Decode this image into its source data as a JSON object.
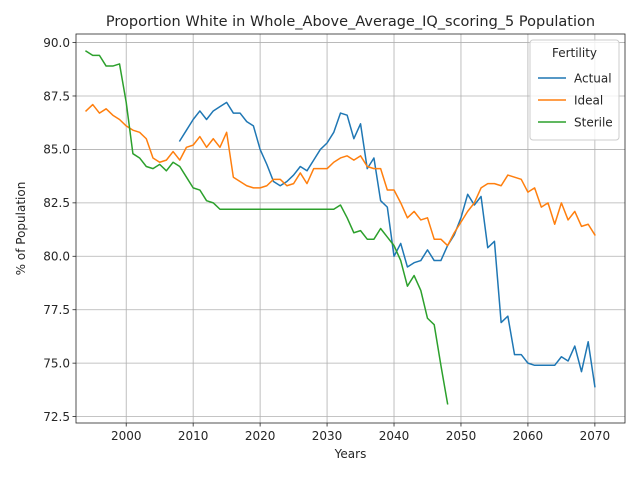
{
  "chart_data": {
    "type": "line",
    "title": "Proportion White in Whole_Above_Average_IQ_scoring_5 Population",
    "xlabel": "Years",
    "ylabel": "% of Population",
    "xlim": [
      1992.5,
      2074.5
    ],
    "ylim": [
      72.2,
      90.4
    ],
    "xticks": [
      2000,
      2010,
      2020,
      2030,
      2040,
      2050,
      2060,
      2070
    ],
    "yticks": [
      72.5,
      75.0,
      77.5,
      80.0,
      82.5,
      85.0,
      87.5,
      90.0
    ],
    "grid": true,
    "legend": {
      "title": "Fertility",
      "placement": "top-right"
    },
    "series": [
      {
        "name": "Actual",
        "color": "#1f77b4",
        "x": [
          2008,
          2009,
          2010,
          2011,
          2012,
          2013,
          2014,
          2015,
          2016,
          2017,
          2018,
          2019,
          2020,
          2021,
          2022,
          2023,
          2024,
          2025,
          2026,
          2027,
          2028,
          2029,
          2030,
          2031,
          2032,
          2033,
          2034,
          2035,
          2036,
          2037,
          2038,
          2039,
          2040,
          2041,
          2042,
          2043,
          2044,
          2045,
          2046,
          2047,
          2048,
          2049,
          2050,
          2051,
          2052,
          2053,
          2054,
          2055,
          2056,
          2057,
          2058,
          2059,
          2060,
          2061,
          2062,
          2063,
          2064,
          2065,
          2066,
          2067,
          2068,
          2069,
          2070
        ],
        "y": [
          85.4,
          85.9,
          86.4,
          86.8,
          86.4,
          86.8,
          87.0,
          87.2,
          86.7,
          86.7,
          86.3,
          86.1,
          85.0,
          84.3,
          83.5,
          83.3,
          83.5,
          83.8,
          84.2,
          84.0,
          84.5,
          85.0,
          85.3,
          85.8,
          86.7,
          86.6,
          85.5,
          86.2,
          84.1,
          84.6,
          82.6,
          82.3,
          80.0,
          80.6,
          79.5,
          79.7,
          79.8,
          80.3,
          79.8,
          79.8,
          80.5,
          81.0,
          81.8,
          82.9,
          82.4,
          82.8,
          80.4,
          80.7,
          76.9,
          77.2,
          75.4,
          75.4,
          75.0,
          74.9,
          74.9,
          74.9,
          74.9,
          75.3,
          75.1,
          75.8,
          74.6,
          76.0,
          73.9
        ]
      },
      {
        "name": "Ideal",
        "color": "#ff7f0e",
        "x": [
          1994,
          1995,
          1996,
          1997,
          1998,
          1999,
          2000,
          2001,
          2002,
          2003,
          2004,
          2005,
          2006,
          2007,
          2008,
          2009,
          2010,
          2011,
          2012,
          2013,
          2014,
          2015,
          2016,
          2017,
          2018,
          2019,
          2020,
          2021,
          2022,
          2023,
          2024,
          2025,
          2026,
          2027,
          2028,
          2029,
          2030,
          2031,
          2032,
          2033,
          2034,
          2035,
          2036,
          2037,
          2038,
          2039,
          2040,
          2041,
          2042,
          2043,
          2044,
          2045,
          2046,
          2047,
          2048,
          2049,
          2050,
          2051,
          2052,
          2053,
          2054,
          2055,
          2056,
          2057,
          2058,
          2059,
          2060,
          2061,
          2062,
          2063,
          2064,
          2065,
          2066,
          2067,
          2068,
          2069,
          2070
        ],
        "y": [
          86.8,
          87.1,
          86.7,
          86.9,
          86.6,
          86.4,
          86.1,
          85.9,
          85.8,
          85.5,
          84.6,
          84.4,
          84.5,
          84.9,
          84.5,
          85.1,
          85.2,
          85.6,
          85.1,
          85.5,
          85.1,
          85.8,
          83.7,
          83.5,
          83.3,
          83.2,
          83.2,
          83.3,
          83.6,
          83.6,
          83.3,
          83.4,
          83.9,
          83.4,
          84.1,
          84.1,
          84.1,
          84.4,
          84.6,
          84.7,
          84.5,
          84.7,
          84.2,
          84.1,
          84.1,
          83.1,
          83.1,
          82.5,
          81.8,
          82.1,
          81.7,
          81.8,
          80.8,
          80.8,
          80.5,
          81.1,
          81.6,
          82.1,
          82.5,
          83.2,
          83.4,
          83.4,
          83.3,
          83.8,
          83.7,
          83.6,
          83.0,
          83.2,
          82.3,
          82.5,
          81.5,
          82.5,
          81.7,
          82.1,
          81.4,
          81.5,
          81.0
        ]
      },
      {
        "name": "Sterile",
        "color": "#2ca02c",
        "x": [
          1994,
          1995,
          1996,
          1997,
          1998,
          1999,
          2000,
          2001,
          2002,
          2003,
          2004,
          2005,
          2006,
          2007,
          2008,
          2009,
          2010,
          2011,
          2012,
          2013,
          2014,
          2015,
          2016,
          2017,
          2018,
          2019,
          2020,
          2021,
          2022,
          2023,
          2024,
          2025,
          2026,
          2027,
          2028,
          2029,
          2030,
          2031,
          2032,
          2033,
          2034,
          2035,
          2036,
          2037,
          2038,
          2039,
          2040,
          2041,
          2042,
          2043,
          2044,
          2045,
          2046,
          2047,
          2048
        ],
        "y": [
          89.6,
          89.4,
          89.4,
          88.9,
          88.9,
          89.0,
          87.2,
          84.8,
          84.6,
          84.2,
          84.1,
          84.3,
          84.0,
          84.4,
          84.2,
          83.7,
          83.2,
          83.1,
          82.6,
          82.5,
          82.2,
          82.2,
          82.2,
          82.2,
          82.2,
          82.2,
          82.2,
          82.2,
          82.2,
          82.2,
          82.2,
          82.2,
          82.2,
          82.2,
          82.2,
          82.2,
          82.2,
          82.2,
          82.4,
          81.8,
          81.1,
          81.2,
          80.8,
          80.8,
          81.3,
          80.9,
          80.5,
          79.8,
          78.6,
          79.1,
          78.4,
          77.1,
          76.8,
          74.9,
          73.1
        ]
      }
    ]
  }
}
